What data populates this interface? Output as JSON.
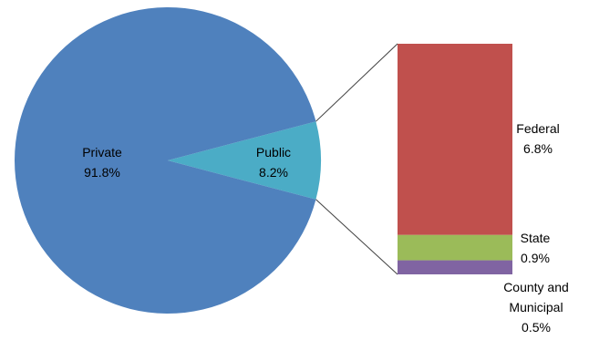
{
  "chart_data": {
    "type": "pie",
    "slices": [
      {
        "label": "Private",
        "value": 91.8,
        "value_label": "91.8%",
        "color": "#4F81BD"
      },
      {
        "label": "Public",
        "value": 8.2,
        "value_label": "8.2%",
        "color": "#4BACC6"
      }
    ],
    "breakdown": {
      "of": "Public",
      "type": "stacked-bar",
      "segments": [
        {
          "label": "Federal",
          "value": 6.8,
          "value_label": "6.8%",
          "color": "#C0504D"
        },
        {
          "label": "State",
          "value": 0.9,
          "value_label": "0.9%",
          "color": "#9BBB59"
        },
        {
          "label": "County and Municipal",
          "label_lines": [
            "County and",
            "Municipal"
          ],
          "value": 0.5,
          "value_label": "0.5%",
          "color": "#8064A2"
        }
      ]
    },
    "connector_color": "#404040"
  }
}
